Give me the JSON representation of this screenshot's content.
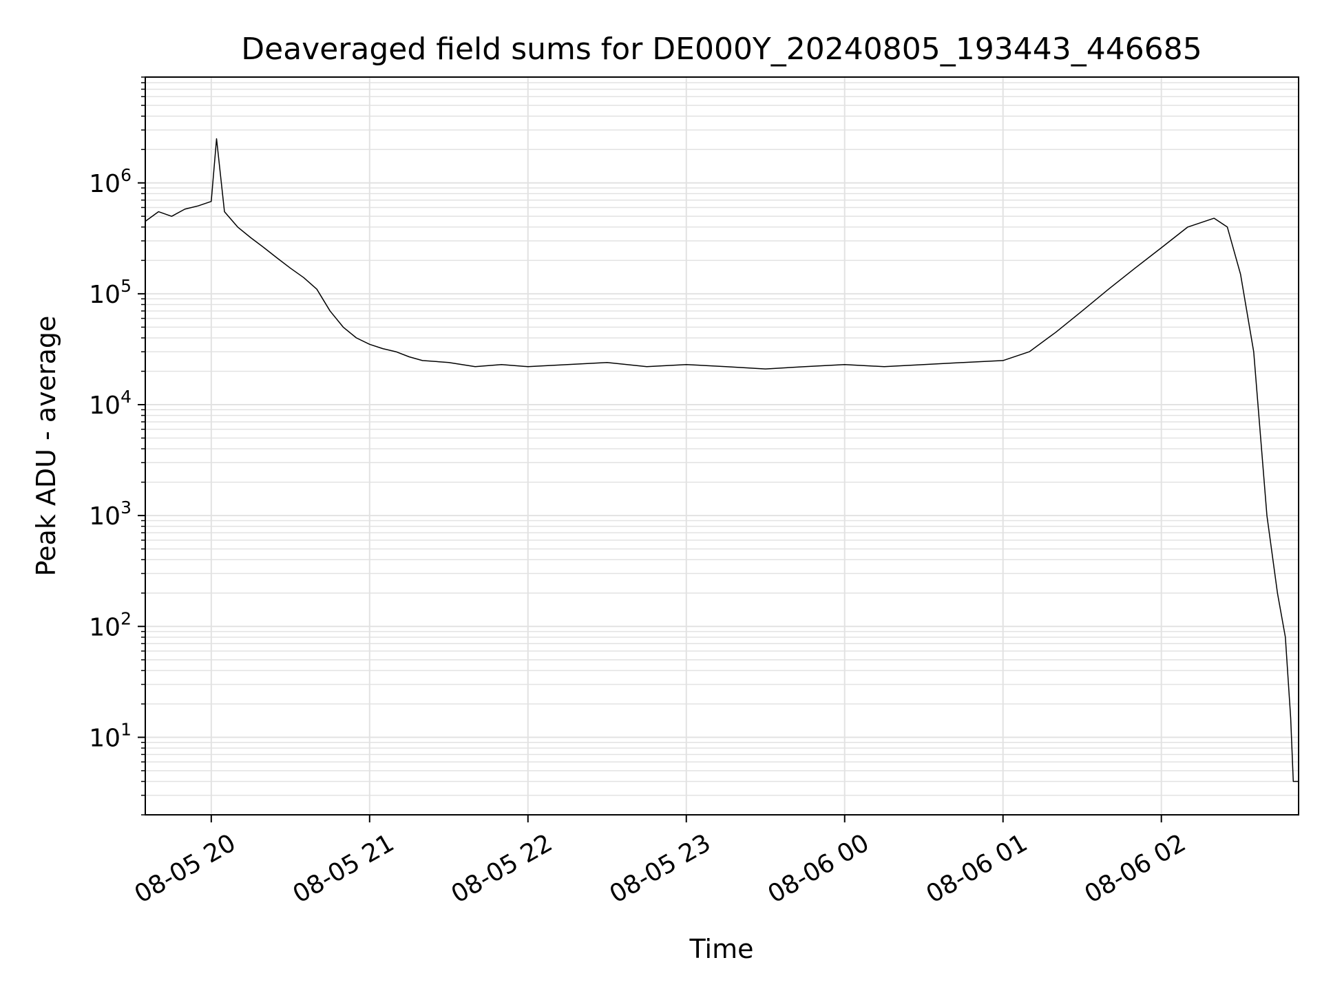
{
  "chart_data": {
    "type": "line",
    "title": "Deaveraged field sums for DE000Y_20240805_193443_446685",
    "xlabel": "Time",
    "ylabel": "Peak ADU - average",
    "x_range": [
      "2024-08-05 19:35",
      "2024-08-06 02:52"
    ],
    "y_scale": "log",
    "ylim": [
      2,
      9000000
    ],
    "grid": true,
    "line_color": "#000000",
    "grid_color": "#e2e2e2",
    "x_ticks": [
      {
        "value": "2024-08-05 20:00",
        "label": "08-05 20"
      },
      {
        "value": "2024-08-05 21:00",
        "label": "08-05 21"
      },
      {
        "value": "2024-08-05 22:00",
        "label": "08-05 22"
      },
      {
        "value": "2024-08-05 23:00",
        "label": "08-05 23"
      },
      {
        "value": "2024-08-06 00:00",
        "label": "08-06 00"
      },
      {
        "value": "2024-08-06 01:00",
        "label": "08-06 01"
      },
      {
        "value": "2024-08-06 02:00",
        "label": "08-06 02"
      }
    ],
    "y_ticks": [
      {
        "value": 10,
        "base": "10",
        "exp": "1"
      },
      {
        "value": 100,
        "base": "10",
        "exp": "2"
      },
      {
        "value": 1000,
        "base": "10",
        "exp": "3"
      },
      {
        "value": 10000,
        "base": "10",
        "exp": "4"
      },
      {
        "value": 100000,
        "base": "10",
        "exp": "5"
      },
      {
        "value": 1000000,
        "base": "10",
        "exp": "6"
      }
    ],
    "series": [
      {
        "values": [
          [
            "2024-08-05 19:35",
            450000
          ],
          [
            "2024-08-05 19:40",
            550000
          ],
          [
            "2024-08-05 19:45",
            500000
          ],
          [
            "2024-08-05 19:50",
            580000
          ],
          [
            "2024-08-05 19:55",
            620000
          ],
          [
            "2024-08-05 20:00",
            680000
          ],
          [
            "2024-08-05 20:02",
            2500000
          ],
          [
            "2024-08-05 20:05",
            550000
          ],
          [
            "2024-08-05 20:10",
            400000
          ],
          [
            "2024-08-05 20:15",
            320000
          ],
          [
            "2024-08-05 20:20",
            260000
          ],
          [
            "2024-08-05 20:25",
            210000
          ],
          [
            "2024-08-05 20:30",
            170000
          ],
          [
            "2024-08-05 20:35",
            140000
          ],
          [
            "2024-08-05 20:40",
            110000
          ],
          [
            "2024-08-05 20:45",
            70000
          ],
          [
            "2024-08-05 20:50",
            50000
          ],
          [
            "2024-08-05 20:55",
            40000
          ],
          [
            "2024-08-05 21:00",
            35000
          ],
          [
            "2024-08-05 21:05",
            32000
          ],
          [
            "2024-08-05 21:10",
            30000
          ],
          [
            "2024-08-05 21:15",
            27000
          ],
          [
            "2024-08-05 21:20",
            25000
          ],
          [
            "2024-08-05 21:30",
            24000
          ],
          [
            "2024-08-05 21:40",
            22000
          ],
          [
            "2024-08-05 21:50",
            23000
          ],
          [
            "2024-08-05 22:00",
            22000
          ],
          [
            "2024-08-05 22:15",
            23000
          ],
          [
            "2024-08-05 22:30",
            24000
          ],
          [
            "2024-08-05 22:45",
            22000
          ],
          [
            "2024-08-05 23:00",
            23000
          ],
          [
            "2024-08-05 23:15",
            22000
          ],
          [
            "2024-08-05 23:30",
            21000
          ],
          [
            "2024-08-05 23:45",
            22000
          ],
          [
            "2024-08-06 00:00",
            23000
          ],
          [
            "2024-08-06 00:15",
            22000
          ],
          [
            "2024-08-06 00:30",
            23000
          ],
          [
            "2024-08-06 00:45",
            24000
          ],
          [
            "2024-08-06 01:00",
            25000
          ],
          [
            "2024-08-06 01:10",
            30000
          ],
          [
            "2024-08-06 01:20",
            45000
          ],
          [
            "2024-08-06 01:30",
            70000
          ],
          [
            "2024-08-06 01:40",
            110000
          ],
          [
            "2024-08-06 01:50",
            170000
          ],
          [
            "2024-08-06 02:00",
            260000
          ],
          [
            "2024-08-06 02:10",
            400000
          ],
          [
            "2024-08-06 02:20",
            480000
          ],
          [
            "2024-08-06 02:25",
            400000
          ],
          [
            "2024-08-06 02:30",
            150000
          ],
          [
            "2024-08-06 02:35",
            30000
          ],
          [
            "2024-08-06 02:40",
            1000
          ],
          [
            "2024-08-06 02:44",
            200
          ],
          [
            "2024-08-06 02:47",
            80
          ],
          [
            "2024-08-06 02:49",
            15
          ],
          [
            "2024-08-06 02:50",
            4
          ],
          [
            "2024-08-06 02:52",
            4
          ]
        ]
      }
    ]
  }
}
